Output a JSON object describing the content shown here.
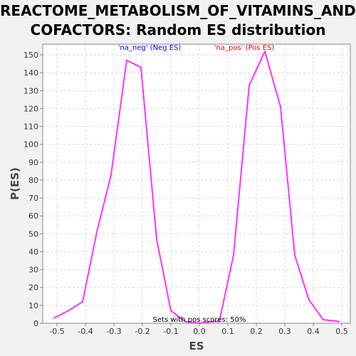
{
  "chart_data": {
    "type": "line",
    "title": "REACTOME_METABOLISM_OF_VITAMINS_AND_\nCOFACTORS: Random ES distribution",
    "xlabel": "ES",
    "ylabel": "P(ES)",
    "xlim": [
      -0.55,
      0.53
    ],
    "ylim": [
      0,
      156
    ],
    "x_ticks": [
      -0.5,
      -0.4,
      -0.3,
      -0.2,
      -0.1,
      0.0,
      0.1,
      0.2,
      0.3,
      0.4,
      0.5
    ],
    "x_tick_labels": [
      "-0.5",
      "-0.4",
      "-0.3",
      "-0.2",
      "-0.1",
      "0.0",
      "0.1",
      "0.2",
      "0.3",
      "0.4",
      "0.5"
    ],
    "y_ticks": [
      0,
      10,
      20,
      30,
      40,
      50,
      60,
      70,
      80,
      90,
      100,
      110,
      120,
      130,
      140,
      150
    ],
    "grid": true,
    "series": [
      {
        "color": "#ff33ff",
        "x": [
          -0.51,
          -0.46,
          -0.41,
          -0.36,
          -0.31,
          -0.255,
          -0.205,
          -0.15,
          -0.1,
          -0.05,
          0.0,
          0.05,
          0.07,
          0.12,
          0.175,
          0.23,
          0.285,
          0.335,
          0.385,
          0.435,
          0.49
        ],
        "y": [
          3,
          7,
          12,
          51,
          83,
          147,
          143,
          47,
          7,
          1,
          0,
          1,
          1,
          38,
          133,
          152,
          121,
          38,
          13,
          2,
          1
        ]
      }
    ],
    "annotations": {
      "neg": {
        "text": "'na_neg' (Neg ES)",
        "color": "#0000ff"
      },
      "pos": {
        "text": "'na_pos' (Pos ES)",
        "color": "#ff0000"
      },
      "footer": {
        "text": "Sets with pos scores: 50%",
        "color": "#000000"
      }
    }
  }
}
